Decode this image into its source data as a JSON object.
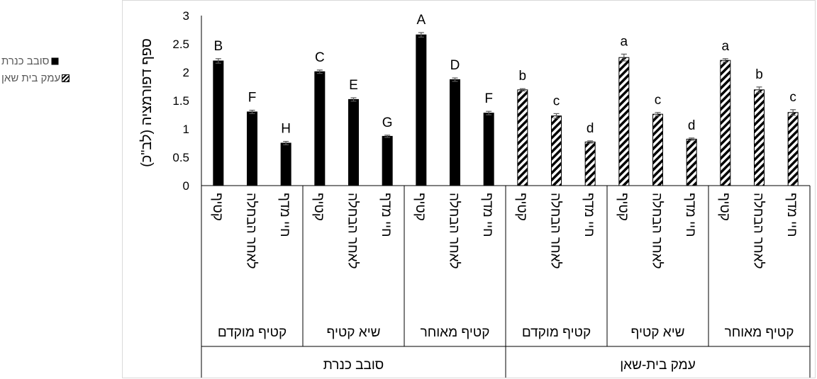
{
  "chart_data": {
    "type": "bar",
    "ylabel": "ספף דפורמציה (לב\"כ)",
    "ylim": [
      0,
      3
    ],
    "yticks": [
      "0",
      "0.5",
      "1",
      "1.5",
      "2",
      "2.5",
      "3"
    ],
    "legend_position": "left",
    "categories": [
      "קטיף",
      "לאחר הבחלה",
      "חיי מדף",
      "קטיף",
      "לאחר הבחלה",
      "חיי מדף",
      "קטיף",
      "לאחר הבחלה",
      "חיי מדף",
      "קטיף",
      "לאחר הבחלה",
      "חיי מדף",
      "קטיף",
      "לאחר הבחלה",
      "חיי מדף",
      "קטיף",
      "לאחר הבחלה",
      "חיי מדף"
    ],
    "values": [
      2.2,
      1.3,
      0.75,
      2.01,
      1.52,
      0.87,
      2.66,
      1.87,
      1.28,
      1.69,
      1.23,
      0.77,
      2.26,
      1.26,
      0.82,
      2.21,
      1.69,
      1.29
    ],
    "errors": [
      0.04,
      0.03,
      0.03,
      0.03,
      0.03,
      0.02,
      0.04,
      0.03,
      0.03,
      0.02,
      0.04,
      0.02,
      0.06,
      0.03,
      0.02,
      0.03,
      0.05,
      0.05
    ],
    "letters": [
      "B",
      "F",
      "H",
      "C",
      "E",
      "G",
      "A",
      "D",
      "F",
      "b",
      "c",
      "d",
      "a",
      "c",
      "d",
      "a",
      "b",
      "c"
    ],
    "series_of_bar": [
      0,
      0,
      0,
      0,
      0,
      0,
      0,
      0,
      0,
      1,
      1,
      1,
      1,
      1,
      1,
      1,
      1,
      1
    ],
    "groups": [
      "קטיף מוקדם",
      "שיא קטיף",
      "קטיף מאוחר",
      "קטיף מוקדם",
      "שיא קטיף",
      "קטיף מאוחר"
    ],
    "regions": [
      "סובב כנרת",
      "עמק בית-שאן"
    ],
    "series": [
      {
        "name": "סובב כנרת",
        "pattern": "solid",
        "color": "#000000"
      },
      {
        "name": "עמק בית שאן",
        "pattern": "diagonal-stripes",
        "color": "#000000"
      }
    ]
  }
}
